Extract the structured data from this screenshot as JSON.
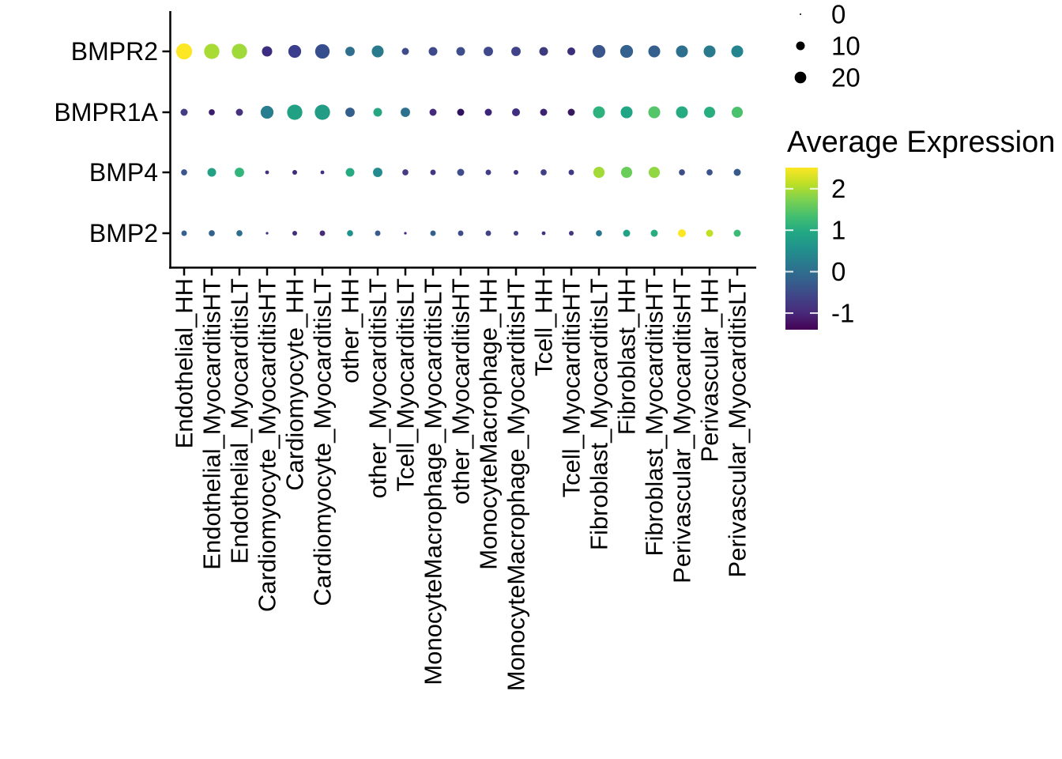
{
  "chart_data": {
    "type": "scatter",
    "subtype": "dot_plot",
    "title": "",
    "xlabel": "",
    "ylabel": "",
    "grid": false,
    "x_categories": [
      "Endothelial_HH",
      "Endothelial_MyocarditisHT",
      "Endothelial_MyocarditisLT",
      "Cardiomyocyte_MyocarditisHT",
      "Cardiomyocyte_HH",
      "Cardiomyocyte_MyocarditisLT",
      "other_HH",
      "other_MyocarditisLT",
      "Tcell_MyocarditisLT",
      "MonocyteMacrophage_MyocarditisLT",
      "other_MyocarditisHT",
      "MonocyteMacrophage_HH",
      "MonocyteMacrophage_MyocarditisHT",
      "Tcell_HH",
      "Tcell_MyocarditisHT",
      "Fibroblast_MyocarditisLT",
      "Fibroblast_HH",
      "Fibroblast_MyocarditisHT",
      "Perivascular_MyocarditisHT",
      "Perivascular_HH",
      "Perivascular_MyocarditisLT"
    ],
    "y_categories": [
      "BMPR2",
      "BMPR1A",
      "BMP4",
      "BMP2"
    ],
    "series": [
      {
        "name": "BMPR2",
        "pct_expressed": [
          41,
          37,
          37,
          15,
          25,
          33,
          12,
          21,
          6,
          10,
          10,
          12,
          12,
          10,
          8,
          25,
          25,
          21,
          21,
          21,
          21
        ],
        "avg_expression": [
          2.5,
          1.9,
          1.85,
          -0.8,
          -0.5,
          -0.3,
          0.3,
          0.45,
          -0.35,
          -0.4,
          -0.3,
          -0.35,
          -0.45,
          -0.6,
          -0.85,
          -0.1,
          0.05,
          0,
          0.3,
          0.45,
          0.6
        ],
        "dot_colors": [
          "#FDE725",
          "#A8DB34",
          "#9FDA3A",
          "#3C2D80",
          "#3B3E8D",
          "#374E8E",
          "#2E6F8E",
          "#2A7A8E",
          "#3F4C8A",
          "#3E4A89",
          "#3D4E8A",
          "#3F488A",
          "#41438A",
          "#3E3A80",
          "#3D2E7C",
          "#39568C",
          "#34618D",
          "#35608D",
          "#2E6F8E",
          "#2A7A8E",
          "#25858E"
        ]
      },
      {
        "name": "BMPR1A",
        "pct_expressed": [
          6,
          4,
          6,
          25,
          37,
          37,
          12,
          10,
          12,
          6,
          6,
          6,
          8,
          6,
          6,
          21,
          21,
          21,
          21,
          18,
          18
        ],
        "avg_expression": [
          -0.5,
          -1.3,
          -0.7,
          0.5,
          1.1,
          1.05,
          0,
          1.15,
          0.35,
          -0.85,
          -1.35,
          -1,
          -0.8,
          -1.05,
          -1.3,
          1.3,
          1.15,
          1.7,
          1.25,
          1.3,
          1.6
        ],
        "dot_colors": [
          "#443D84",
          "#3A1C6E",
          "#46327E",
          "#287E8E",
          "#22A083",
          "#239C85",
          "#345F8D",
          "#27A781",
          "#2D718E",
          "#462A7C",
          "#30125F",
          "#3C2479",
          "#412E80",
          "#3B2272",
          "#39195E",
          "#2DB27D",
          "#21A585",
          "#54C568",
          "#26AA82",
          "#29AF7F",
          "#4AC16D"
        ]
      },
      {
        "name": "BMP4",
        "pct_expressed": [
          4,
          10,
          12,
          1,
          2,
          1,
          10,
          12,
          4,
          3,
          6,
          3,
          2,
          4,
          3,
          18,
          18,
          18,
          4,
          4,
          6
        ],
        "avg_expression": [
          -0.1,
          1.15,
          1.4,
          -0.7,
          -0.8,
          -0.7,
          1.2,
          0.7,
          -0.5,
          -0.6,
          -0.3,
          -0.5,
          -0.6,
          -0.5,
          -0.55,
          1.9,
          1.65,
          1.8,
          -0.35,
          -0.2,
          -0.1
        ],
        "dot_colors": [
          "#3A568C",
          "#24A185",
          "#31B57B",
          "#44317E",
          "#3F2D7A",
          "#432F80",
          "#27A982",
          "#238A8D",
          "#443B84",
          "#433781",
          "#3D4E8A",
          "#413E85",
          "#3F3583",
          "#403E85",
          "#3F3A84",
          "#A2DA37",
          "#6BCD59",
          "#90D743",
          "#3E4C8A",
          "#3B528B",
          "#37598C"
        ]
      },
      {
        "name": "BMP2",
        "pct_expressed": [
          3,
          4,
          4,
          0.2,
          2,
          3,
          4,
          3,
          0.2,
          3,
          3,
          3,
          2,
          1,
          2,
          4,
          6,
          6,
          8,
          6,
          6
        ],
        "avg_expression": [
          0,
          0.05,
          0.3,
          -0.7,
          -0.75,
          -0.8,
          0.85,
          -0.05,
          -0.85,
          0,
          -0.3,
          -0.45,
          -0.5,
          -0.7,
          -0.6,
          0.4,
          1.1,
          1.25,
          2.5,
          2.1,
          1.5
        ],
        "dot_colors": [
          "#36608D",
          "#33628D",
          "#2E6F8E",
          "#45307D",
          "#432E7C",
          "#472C7A",
          "#21918C",
          "#3A5C8D",
          "#44277C",
          "#355F8D",
          "#3D4D8A",
          "#424387",
          "#433E85",
          "#42317E",
          "#433683",
          "#2A788E",
          "#22A285",
          "#29AD80",
          "#FDE725",
          "#C2DF23",
          "#3BBB75"
        ]
      }
    ],
    "size_legend": {
      "labels": [
        "0",
        "10",
        "20"
      ],
      "values": [
        0,
        10,
        20
      ],
      "dot_color": "#000000"
    },
    "color_legend": {
      "title": "Average Expression",
      "tick_labels": [
        "2",
        "1",
        "0",
        "-1"
      ],
      "tick_values": [
        2,
        1,
        0,
        -1
      ],
      "domain": [
        -1.4,
        2.51
      ],
      "colormap": "viridis",
      "gradient_stops_top_to_bottom": [
        "#FDE725",
        "#BDDF26",
        "#7AD151",
        "#44BF70",
        "#22A884",
        "#21918C",
        "#2A788E",
        "#355F8D",
        "#414487",
        "#482878",
        "#440154"
      ]
    },
    "axis_color": "#000000",
    "text_color": "#000000",
    "legend_position": "right"
  }
}
